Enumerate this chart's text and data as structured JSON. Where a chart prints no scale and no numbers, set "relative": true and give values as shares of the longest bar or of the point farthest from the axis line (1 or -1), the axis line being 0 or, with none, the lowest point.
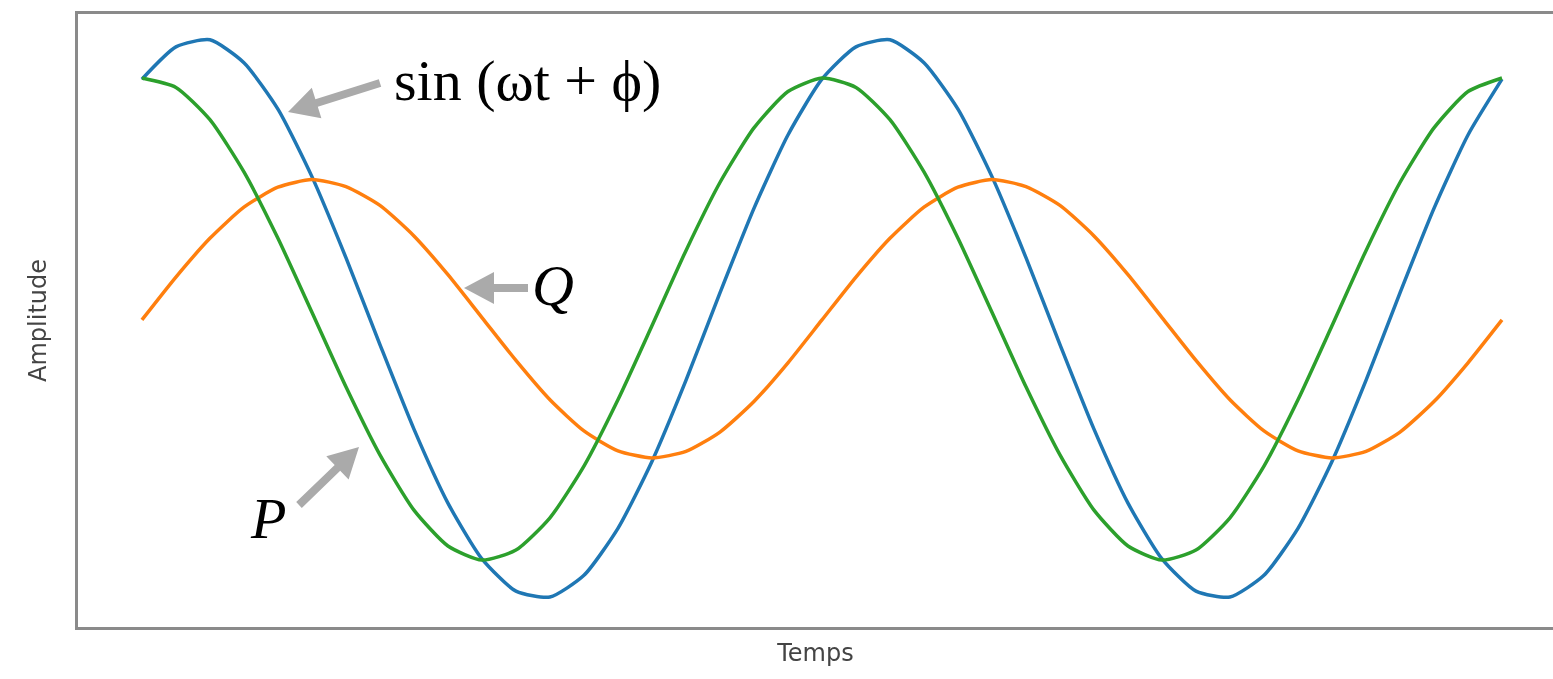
{
  "chart_data": {
    "type": "line",
    "relative": true,
    "xlabel": "Temps",
    "ylabel": "Amplitude",
    "tick_labels": false,
    "categories": [
      null,
      null,
      null,
      null,
      null,
      null,
      null,
      null,
      null,
      null,
      null,
      null,
      null,
      null,
      null,
      null,
      null,
      null,
      null,
      null,
      null,
      null,
      null,
      null,
      null,
      null,
      null,
      null,
      null,
      null,
      null,
      null,
      null,
      null,
      null,
      null,
      null,
      null,
      null,
      null,
      null
    ],
    "series": [
      {
        "name": "sin (ωt + ϕ)",
        "color": "#1f77b4",
        "values": [
          0.933,
          0.988,
          1.0,
          0.961,
          0.882,
          0.767,
          0.629,
          0.481,
          0.337,
          0.211,
          0.116,
          0.061,
          0.051,
          0.088,
          0.168,
          0.282,
          0.42,
          0.569,
          0.713,
          0.838,
          0.933,
          0.988,
          1.0,
          0.961,
          0.882,
          0.767,
          0.629,
          0.481,
          0.337,
          0.211,
          0.116,
          0.061,
          0.051,
          0.088,
          0.168,
          0.282,
          0.42,
          0.569,
          0.713,
          0.838,
          0.933
        ]
      },
      {
        "name": "Q",
        "color": "#ff7f0e",
        "values": [
          0.523,
          0.596,
          0.662,
          0.715,
          0.749,
          0.762,
          0.75,
          0.718,
          0.666,
          0.6,
          0.527,
          0.454,
          0.387,
          0.334,
          0.3,
          0.288,
          0.299,
          0.332,
          0.384,
          0.45,
          0.523,
          0.596,
          0.662,
          0.715,
          0.749,
          0.762,
          0.75,
          0.718,
          0.666,
          0.6,
          0.527,
          0.454,
          0.387,
          0.334,
          0.3,
          0.288,
          0.299,
          0.332,
          0.384,
          0.45,
          0.523
        ]
      },
      {
        "name": "P",
        "color": "#2ca02c",
        "values": [
          0.935,
          0.919,
          0.864,
          0.775,
          0.662,
          0.536,
          0.409,
          0.293,
          0.199,
          0.138,
          0.114,
          0.131,
          0.186,
          0.274,
          0.387,
          0.513,
          0.641,
          0.757,
          0.85,
          0.912,
          0.935,
          0.919,
          0.864,
          0.775,
          0.662,
          0.536,
          0.409,
          0.293,
          0.199,
          0.138,
          0.114,
          0.131,
          0.186,
          0.274,
          0.387,
          0.513,
          0.641,
          0.757,
          0.85,
          0.912,
          0.935
        ]
      }
    ]
  }
}
